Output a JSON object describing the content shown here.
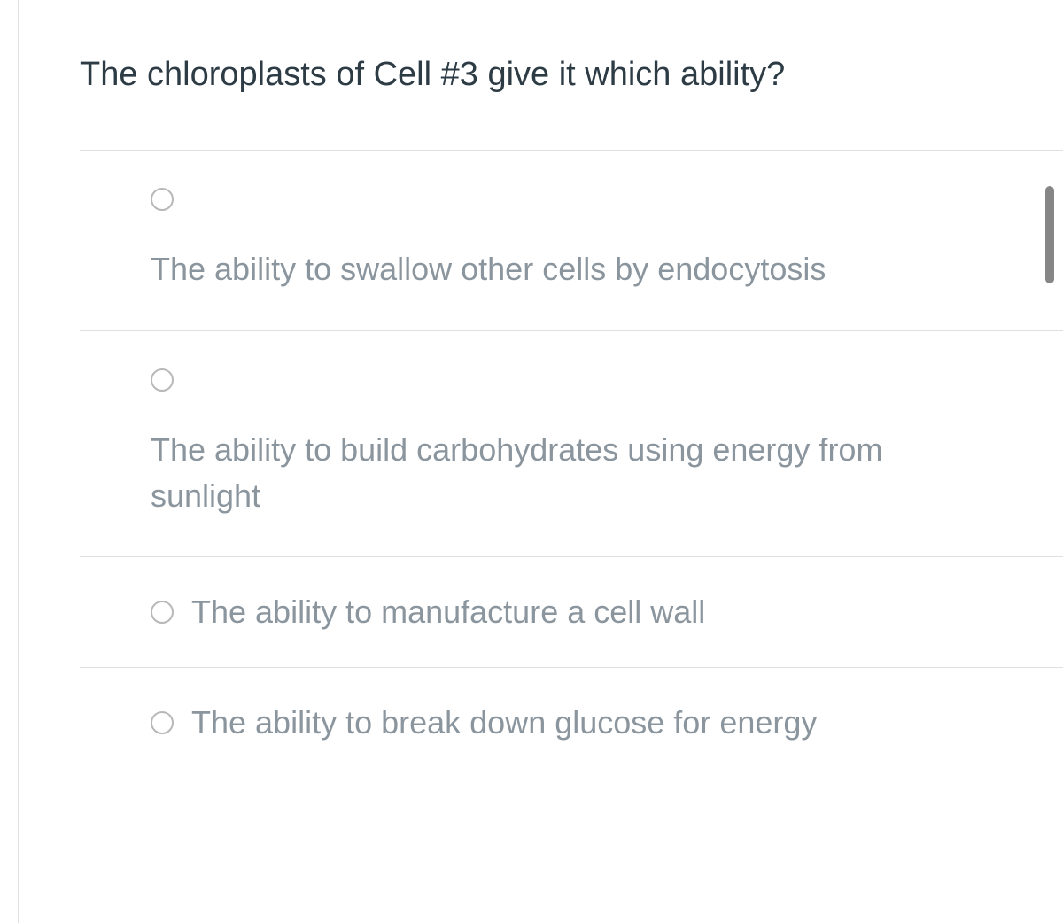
{
  "question": {
    "text": "The chloroplasts of Cell #3 give it which ability?"
  },
  "options": [
    {
      "id": "opt1",
      "label": "The ability to swallow other cells by endocytosis",
      "layout": "stacked"
    },
    {
      "id": "opt2",
      "label": "The ability to build carbohydrates using energy from sunlight",
      "layout": "stacked"
    },
    {
      "id": "opt3",
      "label": "The ability to manufacture a cell wall",
      "layout": "inline"
    },
    {
      "id": "opt4",
      "label": "The ability to break down glucose for energy",
      "layout": "inline"
    }
  ],
  "colors": {
    "question_text": "#2d3b45",
    "option_text": "#8a959e",
    "border": "#e0e0e0",
    "radio_border": "#b8b8b8",
    "scrollbar": "#868686",
    "background": "#ffffff"
  },
  "typography": {
    "question_fontsize": 38,
    "option_fontsize": 36
  }
}
